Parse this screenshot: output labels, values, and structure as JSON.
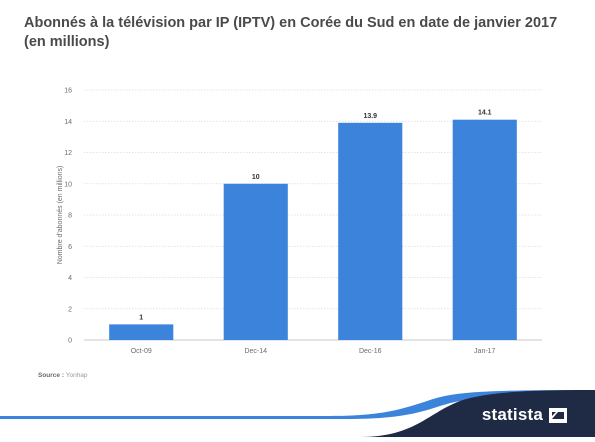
{
  "title": "Abonnés à la télévision par IP (IPTV) en Corée du Sud en date de janvier 2017 (en millions)",
  "source": {
    "label": "Source :",
    "value": "Yonhap"
  },
  "brand": "statista",
  "brand_icon": "statista-logo-icon",
  "colors": {
    "bar": "#3b83db",
    "footer_wave": "#3b83db",
    "footer_dark": "#1f2a44",
    "grid": "#dcdcdc"
  },
  "chart_data": {
    "type": "bar",
    "categories": [
      "Oct-09",
      "Dec-14",
      "Dec-16",
      "Jan-17"
    ],
    "values": [
      1,
      10,
      13.9,
      14.1
    ],
    "value_labels": [
      "1",
      "10",
      "13.9",
      "14.1"
    ],
    "title": "Abonnés à la télévision par IP (IPTV) en Corée du Sud en date de janvier 2017 (en millions)",
    "xlabel": "",
    "ylabel": "Nombre d'abonnés (en millions)",
    "ylim": [
      0,
      16
    ],
    "yticks": [
      0,
      2,
      4,
      6,
      8,
      10,
      12,
      14,
      16
    ],
    "grid": true,
    "legend": "none"
  }
}
